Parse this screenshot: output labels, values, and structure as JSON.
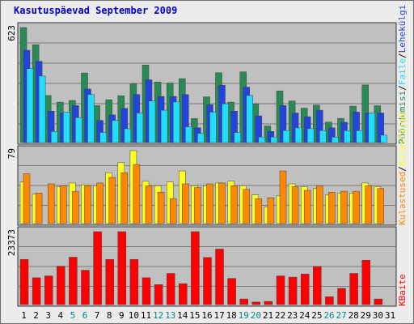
{
  "title": "Kasutuspäevad September 2009",
  "colors": {
    "frame_bg": "#ececec",
    "panel_bg": "#c0c0c0",
    "grid": "#7a7a7a",
    "title": "#0000cc",
    "weekday_label": "#000000",
    "weekend_label": "#008888",
    "kulastused": "#2a8a55",
    "lehekulgi": "#2244dd",
    "faile": "#22ddff",
    "poordumisi": "#2a8a55",
    "kulastajad": "#ffff22",
    "kulastused2": "#ff8800",
    "kbaite": "#ff0000"
  },
  "chart_data": [
    {
      "type": "bar",
      "panel": "top",
      "x": [
        "1",
        "2",
        "3",
        "4",
        "5",
        "6",
        "7",
        "8",
        "9",
        "10",
        "11",
        "12",
        "13",
        "14",
        "15",
        "16",
        "17",
        "18",
        "19",
        "20",
        "21",
        "22",
        "23",
        "24",
        "25",
        "26",
        "27",
        "28",
        "29",
        "30",
        "31"
      ],
      "weekend_days": [
        "5",
        "6",
        "12",
        "13",
        "19",
        "20",
        "26",
        "27"
      ],
      "y_max_label": "623",
      "ylim": [
        0,
        623
      ],
      "axis_legend": [
        "Pöördumisi",
        "/",
        "Faile",
        "/",
        "Lehekülgi"
      ],
      "series": [
        {
          "name": "Pöördumisi",
          "color": "#2a8a55",
          "values": [
            623,
            530,
            255,
            219,
            228,
            377,
            200,
            232,
            254,
            318,
            420,
            328,
            323,
            346,
            130,
            248,
            378,
            219,
            383,
            210,
            90,
            280,
            225,
            186,
            203,
            111,
            131,
            197,
            312,
            199,
            0
          ]
        },
        {
          "name": "Faile",
          "color": "#2244dd",
          "values": [
            500,
            440,
            170,
            160,
            200,
            290,
            120,
            150,
            185,
            260,
            340,
            250,
            250,
            260,
            80,
            205,
            310,
            170,
            300,
            145,
            60,
            200,
            160,
            140,
            175,
            80,
            110,
            165,
            160,
            160,
            0
          ]
        },
        {
          "name": "Lehekülgi",
          "color": "#22ddff",
          "values": [
            400,
            360,
            60,
            165,
            135,
            260,
            55,
            120,
            75,
            160,
            225,
            175,
            220,
            85,
            50,
            165,
            210,
            55,
            255,
            30,
            30,
            65,
            80,
            75,
            65,
            30,
            65,
            65,
            160,
            40,
            0
          ]
        }
      ]
    },
    {
      "type": "bar",
      "panel": "middle",
      "x": [
        "1",
        "2",
        "3",
        "4",
        "5",
        "6",
        "7",
        "8",
        "9",
        "10",
        "11",
        "12",
        "13",
        "14",
        "15",
        "16",
        "17",
        "18",
        "19",
        "20",
        "21",
        "22",
        "23",
        "24",
        "25",
        "26",
        "27",
        "28",
        "29",
        "30",
        "31"
      ],
      "y_max_label": "79",
      "ylim": [
        0,
        79
      ],
      "axis_legend": [
        "Kulastused",
        "/",
        "Külastajad"
      ],
      "series": [
        {
          "name": "Külastajad",
          "color": "#ffff22",
          "values": [
            45,
            32,
            0,
            40,
            44,
            42,
            41,
            55,
            66,
            79,
            46,
            41,
            45,
            57,
            41,
            41,
            44,
            46,
            41,
            31,
            18,
            30,
            43,
            40,
            38,
            31,
            33,
            33,
            44,
            40,
            0
          ]
        },
        {
          "name": "Kulastused",
          "color": "#ff8800",
          "values": [
            54,
            33,
            43,
            41,
            35,
            41,
            44,
            50,
            55,
            64,
            41,
            34,
            27,
            43,
            39,
            43,
            44,
            41,
            37,
            27,
            28,
            57,
            40,
            36,
            41,
            34,
            35,
            35,
            41,
            38,
            0
          ]
        }
      ]
    },
    {
      "type": "bar",
      "panel": "bottom",
      "x": [
        "1",
        "2",
        "3",
        "4",
        "5",
        "6",
        "7",
        "8",
        "9",
        "10",
        "11",
        "12",
        "13",
        "14",
        "15",
        "16",
        "17",
        "18",
        "19",
        "20",
        "21",
        "22",
        "23",
        "24",
        "25",
        "26",
        "27",
        "28",
        "29",
        "30",
        "31"
      ],
      "y_max_label": "23373",
      "ylim": [
        0,
        23373
      ],
      "axis_legend": [
        "KBaite"
      ],
      "series": [
        {
          "name": "KBaite",
          "color": "#ff0000",
          "values": [
            14500,
            8600,
            9200,
            12300,
            15200,
            11000,
            23373,
            14500,
            23373,
            14500,
            8600,
            6400,
            10000,
            6700,
            23373,
            15100,
            17800,
            8400,
            1800,
            800,
            1000,
            9200,
            8800,
            9800,
            12200,
            2500,
            5200,
            10000,
            14200,
            1800,
            0
          ]
        }
      ]
    }
  ]
}
